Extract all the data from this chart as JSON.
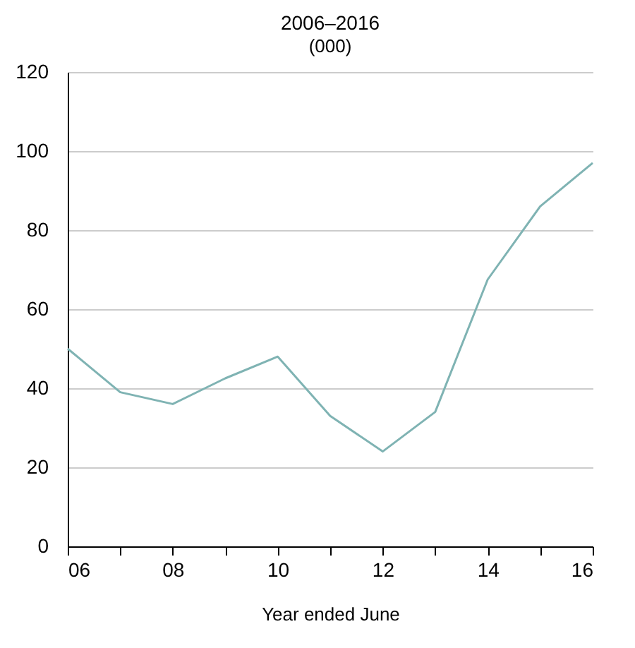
{
  "chart_data": {
    "type": "line",
    "title": "2006–2016",
    "subtitle": "(000)",
    "xlabel": "Year ended June",
    "x": [
      2006,
      2007,
      2008,
      2009,
      2010,
      2011,
      2012,
      2013,
      2014,
      2015,
      2016
    ],
    "series": [
      {
        "color": "#7fb3b3",
        "values": [
          50,
          39,
          36,
          42.5,
          48,
          33,
          24,
          34,
          67.5,
          86,
          97
        ]
      }
    ],
    "xlim": [
      2006,
      2016
    ],
    "xticks": [
      {
        "value": 2006,
        "label": "06"
      },
      {
        "value": 2007,
        "label": null
      },
      {
        "value": 2008,
        "label": "08"
      },
      {
        "value": 2009,
        "label": null
      },
      {
        "value": 2010,
        "label": "10"
      },
      {
        "value": 2011,
        "label": null
      },
      {
        "value": 2012,
        "label": "12"
      },
      {
        "value": 2013,
        "label": null
      },
      {
        "value": 2014,
        "label": "14"
      },
      {
        "value": 2015,
        "label": null
      },
      {
        "value": 2016,
        "label": "16"
      }
    ],
    "ylim": [
      0,
      120
    ],
    "yticks": [
      0,
      20,
      40,
      60,
      80,
      100,
      120
    ],
    "grid": "y",
    "marker": "none",
    "line_style": "solid"
  }
}
